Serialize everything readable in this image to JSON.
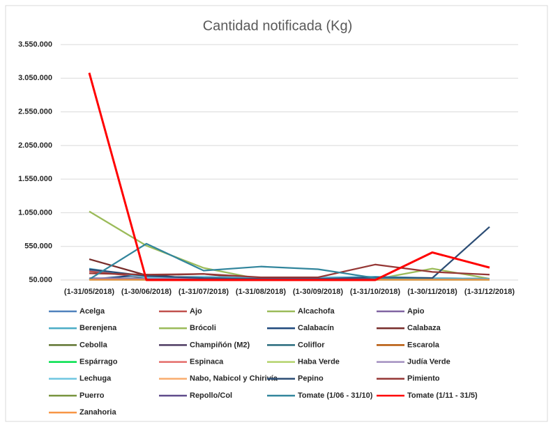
{
  "chart_data": {
    "type": "line",
    "title": "Cantidad notificada  (Kg)",
    "categories": [
      "(1-31/05/2018)",
      "(1-30/06/2018)",
      "(1-31/07/2018)",
      "(1-31/08/2018)",
      "(1-30/09/2018)",
      "(1-31/10/2018)",
      "(1-30/11/2018)",
      "(1-31/12/2018)"
    ],
    "ylim": [
      50000,
      3550000
    ],
    "yticks": [
      {
        "value": 50000,
        "label": "50.000"
      },
      {
        "value": 550000,
        "label": "550.000"
      },
      {
        "value": 1050000,
        "label": "1.050.000"
      },
      {
        "value": 1550000,
        "label": "1.550.000"
      },
      {
        "value": 2050000,
        "label": "2.050.000"
      },
      {
        "value": 2550000,
        "label": "2.550.000"
      },
      {
        "value": 3050000,
        "label": "3.050.000"
      },
      {
        "value": 3550000,
        "label": "3.550.000"
      }
    ],
    "grid": true,
    "legend": "bottom",
    "series": [
      {
        "name": "Acelga",
        "color": "#4f81bd",
        "values": [
          200000,
          80000,
          90000,
          70000,
          70000,
          80000,
          70000,
          70000
        ]
      },
      {
        "name": "Ajo",
        "color": "#c0504d",
        "values": [
          180000,
          90000,
          100000,
          80000,
          80000,
          90000,
          70000,
          70000
        ]
      },
      {
        "name": "Alcachofa",
        "color": "#9bbb59",
        "values": [
          60000,
          55000,
          55000,
          55000,
          55000,
          55000,
          55000,
          55000
        ]
      },
      {
        "name": "Apio",
        "color": "#8064a2",
        "values": [
          70000,
          60000,
          60000,
          60000,
          60000,
          60000,
          60000,
          60000
        ]
      },
      {
        "name": "Berenjena",
        "color": "#4bacc6",
        "values": [
          80000,
          70000,
          70000,
          70000,
          80000,
          90000,
          70000,
          60000
        ]
      },
      {
        "name": "Brócoli",
        "color": "#9bbb59",
        "values": [
          1070000,
          560000,
          230000,
          60000,
          50000,
          60000,
          220000,
          70000
        ]
      },
      {
        "name": "Calabacín",
        "color": "#1f497d",
        "values": [
          60000,
          130000,
          60000,
          60000,
          60000,
          70000,
          70000,
          70000
        ]
      },
      {
        "name": "Calabaza",
        "color": "#772c2a",
        "values": [
          360000,
          120000,
          140000,
          60000,
          80000,
          90000,
          80000,
          70000
        ]
      },
      {
        "name": "Cebolla",
        "color": "#5f7530",
        "values": [
          60000,
          55000,
          55000,
          55000,
          55000,
          55000,
          55000,
          55000
        ]
      },
      {
        "name": "Champiñón (M2)",
        "color": "#4d3b62",
        "values": [
          55000,
          55000,
          55000,
          55000,
          55000,
          55000,
          55000,
          55000
        ]
      },
      {
        "name": "Coliflor",
        "color": "#276a7c",
        "values": [
          70000,
          80000,
          70000,
          60000,
          60000,
          60000,
          60000,
          60000
        ]
      },
      {
        "name": "Escarola",
        "color": "#b65708",
        "values": [
          60000,
          55000,
          55000,
          55000,
          55000,
          60000,
          60000,
          60000
        ]
      },
      {
        "name": "Espárrago",
        "color": "#00e04b",
        "values": [
          55000,
          55000,
          55000,
          55000,
          55000,
          55000,
          55000,
          55000
        ]
      },
      {
        "name": "Espinaca",
        "color": "#e46c6a",
        "values": [
          60000,
          60000,
          55000,
          55000,
          55000,
          60000,
          60000,
          60000
        ]
      },
      {
        "name": "Haba Verde",
        "color": "#b3d36b",
        "values": [
          55000,
          55000,
          55000,
          55000,
          55000,
          55000,
          55000,
          55000
        ]
      },
      {
        "name": "Judía Verde",
        "color": "#a390c0",
        "values": [
          80000,
          70000,
          70000,
          60000,
          60000,
          60000,
          60000,
          60000
        ]
      },
      {
        "name": "Lechuga",
        "color": "#6fc6e0",
        "values": [
          220000,
          90000,
          100000,
          80000,
          90000,
          100000,
          80000,
          70000
        ]
      },
      {
        "name": "Nabo, Nabicol y Chirivía",
        "color": "#f9ac6e",
        "values": [
          55000,
          55000,
          55000,
          55000,
          55000,
          55000,
          55000,
          55000
        ]
      },
      {
        "name": "Pepino",
        "color": "#2c4d75",
        "values": [
          210000,
          110000,
          80000,
          70000,
          70000,
          90000,
          80000,
          840000
        ]
      },
      {
        "name": "Pimiento",
        "color": "#953735",
        "values": [
          150000,
          130000,
          140000,
          90000,
          90000,
          280000,
          170000,
          130000
        ]
      },
      {
        "name": "Puerro",
        "color": "#77933c",
        "values": [
          55000,
          55000,
          55000,
          55000,
          55000,
          55000,
          55000,
          55000
        ]
      },
      {
        "name": "Repollo/Col",
        "color": "#5f4b8b",
        "values": [
          60000,
          60000,
          60000,
          60000,
          60000,
          60000,
          60000,
          60000
        ]
      },
      {
        "name": "Tomate (1/06 - 31/10)",
        "color": "#31859c",
        "values": [
          60000,
          590000,
          190000,
          250000,
          210000,
          80000,
          60000,
          60000
        ]
      },
      {
        "name": "Tomate  (1/11 - 31/5)",
        "color": "#ff0000",
        "values": [
          3130000,
          50000,
          50000,
          50000,
          50000,
          50000,
          460000,
          235000
        ]
      },
      {
        "name": "Zanahoria",
        "color": "#f79646",
        "values": [
          55000,
          55000,
          55000,
          55000,
          55000,
          55000,
          55000,
          55000
        ]
      }
    ]
  }
}
